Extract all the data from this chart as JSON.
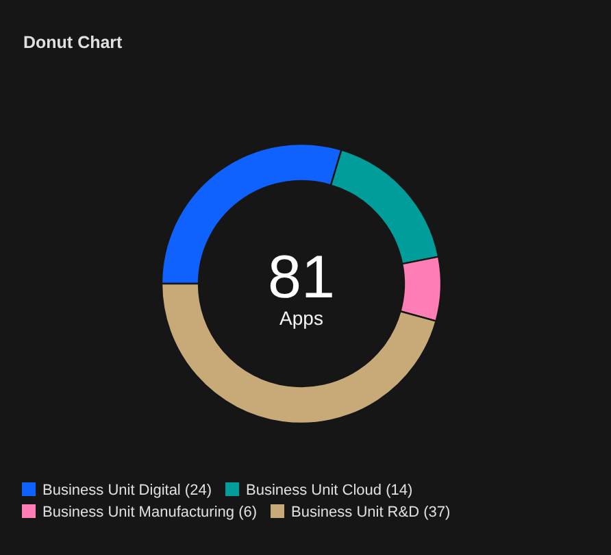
{
  "chart_data": {
    "type": "donut",
    "title": "Donut Chart",
    "categories": [
      "Business Unit Digital",
      "Business Unit Cloud",
      "Business Unit Manufacturing",
      "Business Unit R&D"
    ],
    "values": [
      24,
      14,
      6,
      37
    ],
    "value_labels": [
      "(24)",
      "(14)",
      "(6)",
      "(37)"
    ],
    "colors": [
      "#0f62fe",
      "#009d9a",
      "#ff7eb6",
      "#c8aa78"
    ],
    "annotations": [
      "81",
      "Apps"
    ],
    "legend": "bottom"
  }
}
